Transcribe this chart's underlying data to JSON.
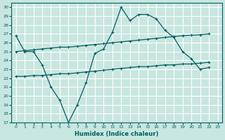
{
  "xlabel": "Humidex (Indice chaleur)",
  "bg_color": "#c8e6e0",
  "grid_color": "#b8d8d0",
  "line_color": "#006060",
  "ylim": [
    17,
    30.5
  ],
  "xlim": [
    -0.5,
    23.5
  ],
  "yticks": [
    17,
    18,
    19,
    20,
    21,
    22,
    23,
    24,
    25,
    26,
    27,
    28,
    29,
    30
  ],
  "xticks": [
    0,
    1,
    2,
    3,
    4,
    5,
    6,
    7,
    8,
    9,
    10,
    11,
    12,
    13,
    14,
    15,
    16,
    17,
    18,
    19,
    20,
    21,
    22,
    23
  ],
  "curve_zigzag_x": [
    0,
    1,
    2,
    3,
    4,
    5,
    6,
    7,
    8,
    9,
    10,
    11,
    12,
    13,
    14,
    15,
    16,
    17,
    18,
    19,
    20,
    21,
    22
  ],
  "curve_zigzag_y": [
    26.8,
    25.0,
    25.0,
    23.5,
    21.0,
    19.5,
    17.0,
    19.0,
    21.5,
    24.8,
    25.3,
    27.2,
    30.0,
    28.5,
    29.2,
    29.2,
    28.7,
    27.4,
    26.6,
    25.0,
    24.2,
    23.0,
    23.2
  ],
  "curve_upper_x": [
    0,
    1,
    2,
    3,
    4,
    5,
    6,
    7,
    8,
    9,
    10,
    11,
    12,
    13,
    14,
    15,
    16,
    17,
    18,
    19,
    20,
    21,
    22
  ],
  "curve_upper_y": [
    25.0,
    25.1,
    25.2,
    25.3,
    25.4,
    25.5,
    25.5,
    25.6,
    25.7,
    25.8,
    25.9,
    26.0,
    26.1,
    26.2,
    26.3,
    26.4,
    26.5,
    26.6,
    26.7,
    26.8,
    26.85,
    26.9,
    27.0
  ],
  "curve_lower_x": [
    0,
    1,
    2,
    3,
    4,
    5,
    6,
    7,
    8,
    9,
    10,
    11,
    12,
    13,
    14,
    15,
    16,
    17,
    18,
    19,
    20,
    21,
    22
  ],
  "curve_lower_y": [
    22.2,
    22.2,
    22.3,
    22.3,
    22.4,
    22.5,
    22.5,
    22.6,
    22.7,
    22.8,
    22.9,
    23.0,
    23.1,
    23.2,
    23.3,
    23.3,
    23.4,
    23.5,
    23.5,
    23.6,
    23.6,
    23.7,
    23.8
  ]
}
